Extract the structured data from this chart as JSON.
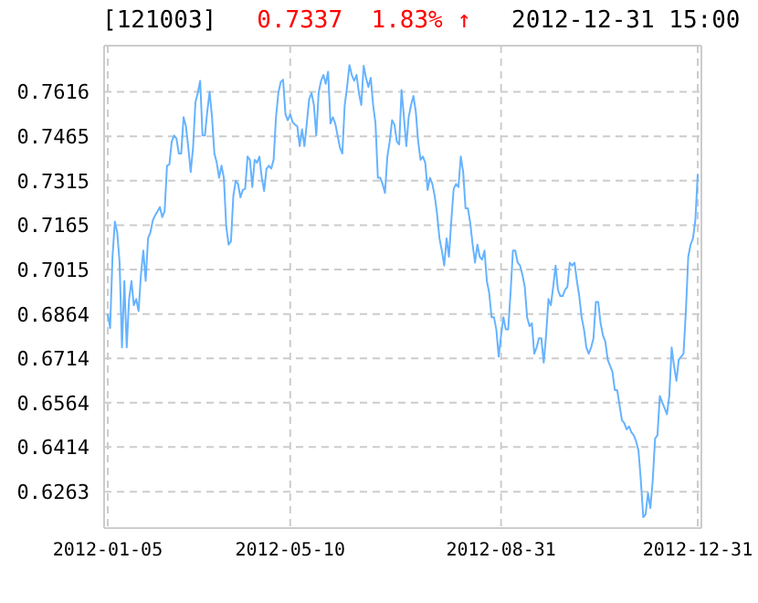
{
  "chart_data": {
    "type": "line",
    "title": "[121003]",
    "subtitle": "0.7337  1.83% ↑",
    "annotations": [
      "2012-12-31 15:00"
    ],
    "categories": [
      "2012-01-05",
      null,
      null,
      null,
      null,
      null,
      null,
      null,
      null,
      null,
      null,
      null,
      null,
      null,
      null,
      null,
      null,
      null,
      null,
      null,
      null,
      null,
      null,
      null,
      null,
      null,
      null,
      null,
      null,
      null,
      null,
      null,
      null,
      null,
      null,
      null,
      null,
      null,
      null,
      null,
      null,
      null,
      null,
      null,
      null,
      null,
      null,
      null,
      null,
      null,
      null,
      null,
      null,
      null,
      null,
      null,
      null,
      null,
      null,
      null,
      null,
      null,
      null,
      null,
      null,
      null,
      null,
      null,
      null,
      null,
      null,
      null,
      null,
      null,
      null,
      null,
      null,
      "2012-05-10",
      null,
      null,
      null,
      null,
      null,
      null,
      null,
      null,
      null,
      null,
      null,
      null,
      null,
      null,
      null,
      null,
      null,
      null,
      null,
      null,
      null,
      null,
      null,
      null,
      null,
      null,
      null,
      null,
      null,
      null,
      null,
      null,
      null,
      null,
      null,
      null,
      null,
      null,
      null,
      null,
      null,
      null,
      null,
      null,
      null,
      null,
      null,
      null,
      null,
      null,
      null,
      null,
      null,
      null,
      null,
      null,
      null,
      null,
      null,
      null,
      null,
      null,
      null,
      null,
      null,
      null,
      null,
      null,
      null,
      null,
      null,
      null,
      null,
      null,
      null,
      null,
      null,
      null,
      null,
      null,
      null,
      null,
      null,
      null,
      null,
      null,
      null,
      null,
      "2012-08-31",
      null,
      null,
      null,
      null,
      null,
      null,
      null,
      null,
      null,
      null,
      null,
      null,
      null,
      null,
      null,
      null,
      null,
      null,
      null,
      null,
      null,
      null,
      null,
      null,
      null,
      null,
      null,
      null,
      null,
      null,
      null,
      null,
      null,
      null,
      null,
      null,
      null,
      null,
      null,
      null,
      null,
      null,
      null,
      null,
      null,
      null,
      null,
      null,
      null,
      null,
      null,
      null,
      null,
      null,
      null,
      null,
      null,
      null,
      null,
      null,
      null,
      null,
      null,
      null,
      null,
      null,
      null,
      null,
      null,
      null,
      null,
      null,
      null,
      null,
      null,
      null,
      null,
      null,
      null,
      null,
      null,
      null,
      "2012-12-31"
    ],
    "series": [
      {
        "color": "#66b3ff",
        "values": [
          0.6864,
          0.6817,
          0.7058,
          0.7177,
          0.714,
          0.7038,
          0.6751,
          0.6976,
          0.6751,
          0.6915,
          0.6976,
          0.6894,
          0.6915,
          0.6874,
          0.6997,
          0.7079,
          0.6976,
          0.712,
          0.714,
          0.7181,
          0.7198,
          0.7212,
          0.7226,
          0.7192,
          0.7212,
          0.7366,
          0.737,
          0.7448,
          0.7468,
          0.7458,
          0.7407,
          0.7407,
          0.753,
          0.7499,
          0.7427,
          0.7345,
          0.7427,
          0.7581,
          0.7612,
          0.7653,
          0.7468,
          0.7468,
          0.755,
          0.7616,
          0.753,
          0.7407,
          0.7376,
          0.7325,
          0.7366,
          0.7325,
          0.7161,
          0.7099,
          0.711,
          0.7263,
          0.7315,
          0.7304,
          0.7259,
          0.7284,
          0.7288,
          0.7397,
          0.7386,
          0.7294,
          0.7386,
          0.7376,
          0.7397,
          0.7325,
          0.728,
          0.7356,
          0.7366,
          0.7356,
          0.7386,
          0.753,
          0.7612,
          0.7649,
          0.7657,
          0.754,
          0.752,
          0.754,
          0.7514,
          0.7505,
          0.7499,
          0.7432,
          0.7489,
          0.7432,
          0.7509,
          0.7591,
          0.7612,
          0.7571,
          0.7468,
          0.7612,
          0.7653,
          0.7673,
          0.7643,
          0.7684,
          0.7509,
          0.753,
          0.7509,
          0.7468,
          0.7427,
          0.7407,
          0.7571,
          0.7632,
          0.7706,
          0.7673,
          0.7653,
          0.7673,
          0.7612,
          0.7571,
          0.7704,
          0.7663,
          0.7632,
          0.7663,
          0.7571,
          0.7509,
          0.7325,
          0.7325,
          0.7304,
          0.7274,
          0.7397,
          0.7448,
          0.752,
          0.7505,
          0.7448,
          0.7438,
          0.7622,
          0.753,
          0.7432,
          0.753,
          0.7571,
          0.7602,
          0.755,
          0.7448,
          0.7386,
          0.7397,
          0.7376,
          0.7284,
          0.7325,
          0.7304,
          0.7263,
          0.7202,
          0.712,
          0.7079,
          0.7028,
          0.712,
          0.7058,
          0.7181,
          0.7288,
          0.7304,
          0.7294,
          0.7397,
          0.7345,
          0.7222,
          0.7222,
          0.7171,
          0.7099,
          0.7038,
          0.7099,
          0.7058,
          0.7048,
          0.7079,
          0.6976,
          0.6935,
          0.6853,
          0.6853,
          0.6812,
          0.672,
          0.6792,
          0.6853,
          0.6812,
          0.6812,
          0.6935,
          0.7079,
          0.7079,
          0.7038,
          0.7028,
          0.6997,
          0.6956,
          0.6853,
          0.6823,
          0.6833,
          0.673,
          0.6751,
          0.6782,
          0.6782,
          0.67,
          0.6792,
          0.6915,
          0.6894,
          0.6956,
          0.7028,
          0.6946,
          0.6925,
          0.6925,
          0.6946,
          0.6956,
          0.7038,
          0.7028,
          0.7038,
          0.6976,
          0.6925,
          0.6853,
          0.6812,
          0.6751,
          0.673,
          0.6751,
          0.6782,
          0.6905,
          0.6905,
          0.6833,
          0.6792,
          0.6771,
          0.671,
          0.6689,
          0.6669,
          0.6607,
          0.6607,
          0.6556,
          0.6505,
          0.6495,
          0.6474,
          0.6484,
          0.6464,
          0.6454,
          0.6433,
          0.6402,
          0.63,
          0.6177,
          0.6187,
          0.6259,
          0.6208,
          0.63,
          0.6443,
          0.6454,
          0.6587,
          0.6566,
          0.6546,
          0.6525,
          0.6587,
          0.6751,
          0.6689,
          0.6638,
          0.671,
          0.672,
          0.673,
          0.6874,
          0.7058,
          0.7099,
          0.712,
          0.7181,
          0.7337
        ]
      }
    ],
    "ylim": [
      0.614,
      0.7772
    ],
    "yticks": [
      0.6263,
      0.6414,
      0.6564,
      0.6714,
      0.6864,
      0.7015,
      0.7165,
      0.7315,
      0.7465,
      0.7616
    ],
    "grid": true,
    "marker": "none",
    "line_style": "solid"
  }
}
